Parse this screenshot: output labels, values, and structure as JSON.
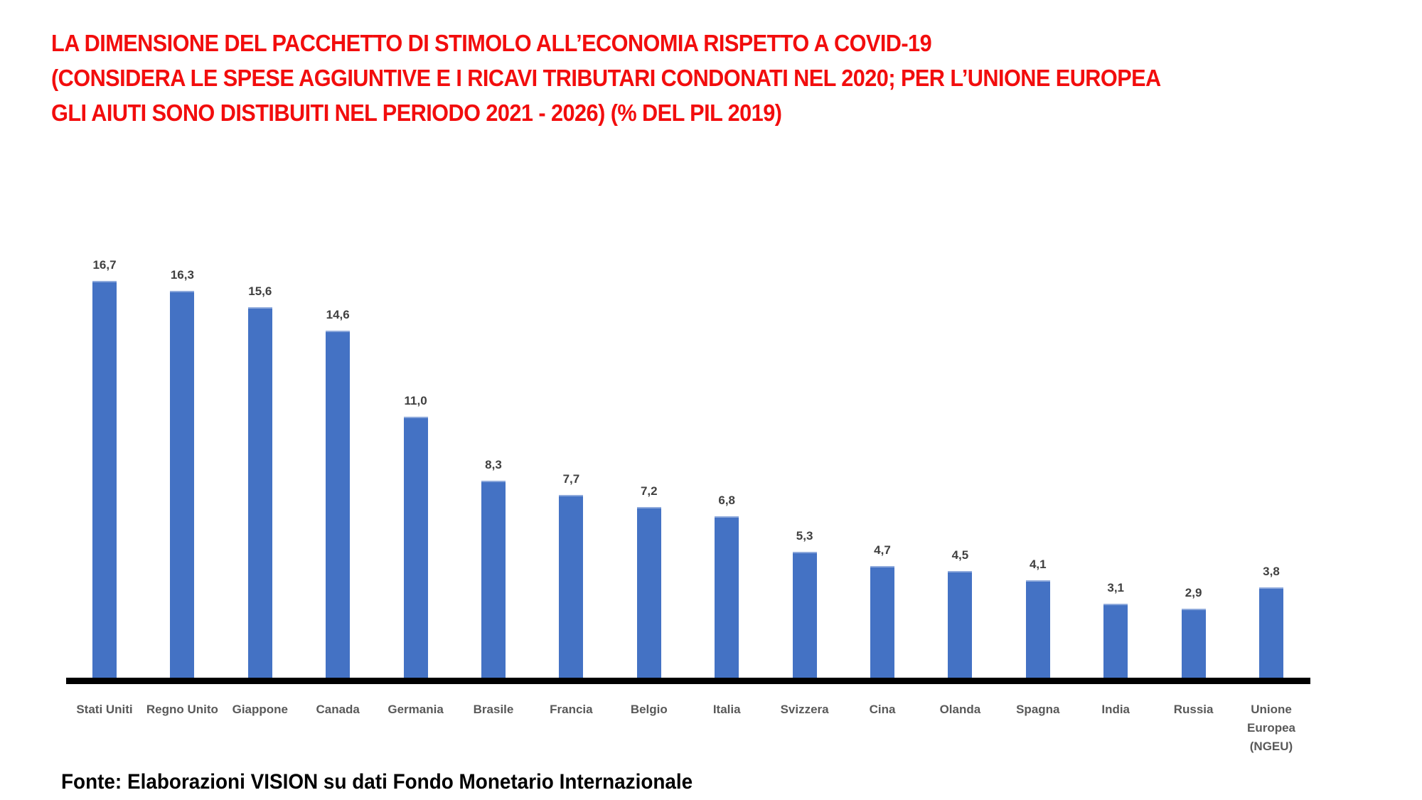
{
  "title": {
    "lines": [
      "LA DIMENSIONE DEL PACCHETTO DI STIMOLO ALL’ECONOMIA RISPETTO A COVID-19",
      "(CONSIDERA LE SPESE AGGIUNTIVE E I RICAVI TRIBUTARI CONDONATI NEL 2020; PER L’UNIONE EUROPEA",
      "GLI AIUTI SONO DISTIBUITI NEL PERIODO 2021 - 2026) (% DEL PIL 2019)"
    ]
  },
  "source": "Fonte: Elaborazioni VISION su dati Fondo Monetario Internazionale",
  "colors": {
    "title": "#f20d0d",
    "bar": "#4472c4",
    "axis": "#000000",
    "value_label": "#404040",
    "category_label": "#595959"
  },
  "chart_data": {
    "type": "bar",
    "title": "LA DIMENSIONE DEL PACCHETTO DI STIMOLO ALL’ECONOMIA RISPETTO A COVID-19 (CONSIDERA LE SPESE AGGIUNTIVE E I RICAVI TRIBUTARI CONDONATI NEL 2020; PER L’UNIONE EUROPEA GLI AIUTI SONO DISTIBUITI NEL PERIODO 2021 - 2026) (% DEL PIL 2019)",
    "xlabel": "",
    "ylabel": "% del PIL 2019",
    "ylim": [
      0,
      17
    ],
    "grid": false,
    "legend": null,
    "categories": [
      "Stati Uniti",
      "Regno Unito",
      "Giappone",
      "Canada",
      "Germania",
      "Brasile",
      "Francia",
      "Belgio",
      "Italia",
      "Svizzera",
      "Cina",
      "Olanda",
      "Spagna",
      "India",
      "Russia",
      "Unione Europea (NGEU)"
    ],
    "values": [
      16.7,
      16.3,
      15.6,
      14.6,
      11.0,
      8.3,
      7.7,
      7.2,
      6.8,
      5.3,
      4.7,
      4.5,
      4.1,
      3.1,
      2.9,
      3.8
    ],
    "value_labels": [
      "16,7",
      "16,3",
      "15,6",
      "14,6",
      "11,0",
      "8,3",
      "7,7",
      "7,2",
      "6,8",
      "5,3",
      "4,7",
      "4,5",
      "4,1",
      "3,1",
      "2,9",
      "3,8"
    ],
    "category_label_lines": [
      [
        "Stati Uniti"
      ],
      [
        "Regno Unito"
      ],
      [
        "Giappone"
      ],
      [
        "Canada"
      ],
      [
        "Germania"
      ],
      [
        "Brasile"
      ],
      [
        "Francia"
      ],
      [
        "Belgio"
      ],
      [
        "Italia"
      ],
      [
        "Svizzera"
      ],
      [
        "Cina"
      ],
      [
        "Olanda"
      ],
      [
        "Spagna"
      ],
      [
        "India"
      ],
      [
        "Russia"
      ],
      [
        "Unione",
        "Europea",
        "(NGEU)"
      ]
    ],
    "source": "Fonte: Elaborazioni VISION su dati Fondo Monetario Internazionale"
  }
}
